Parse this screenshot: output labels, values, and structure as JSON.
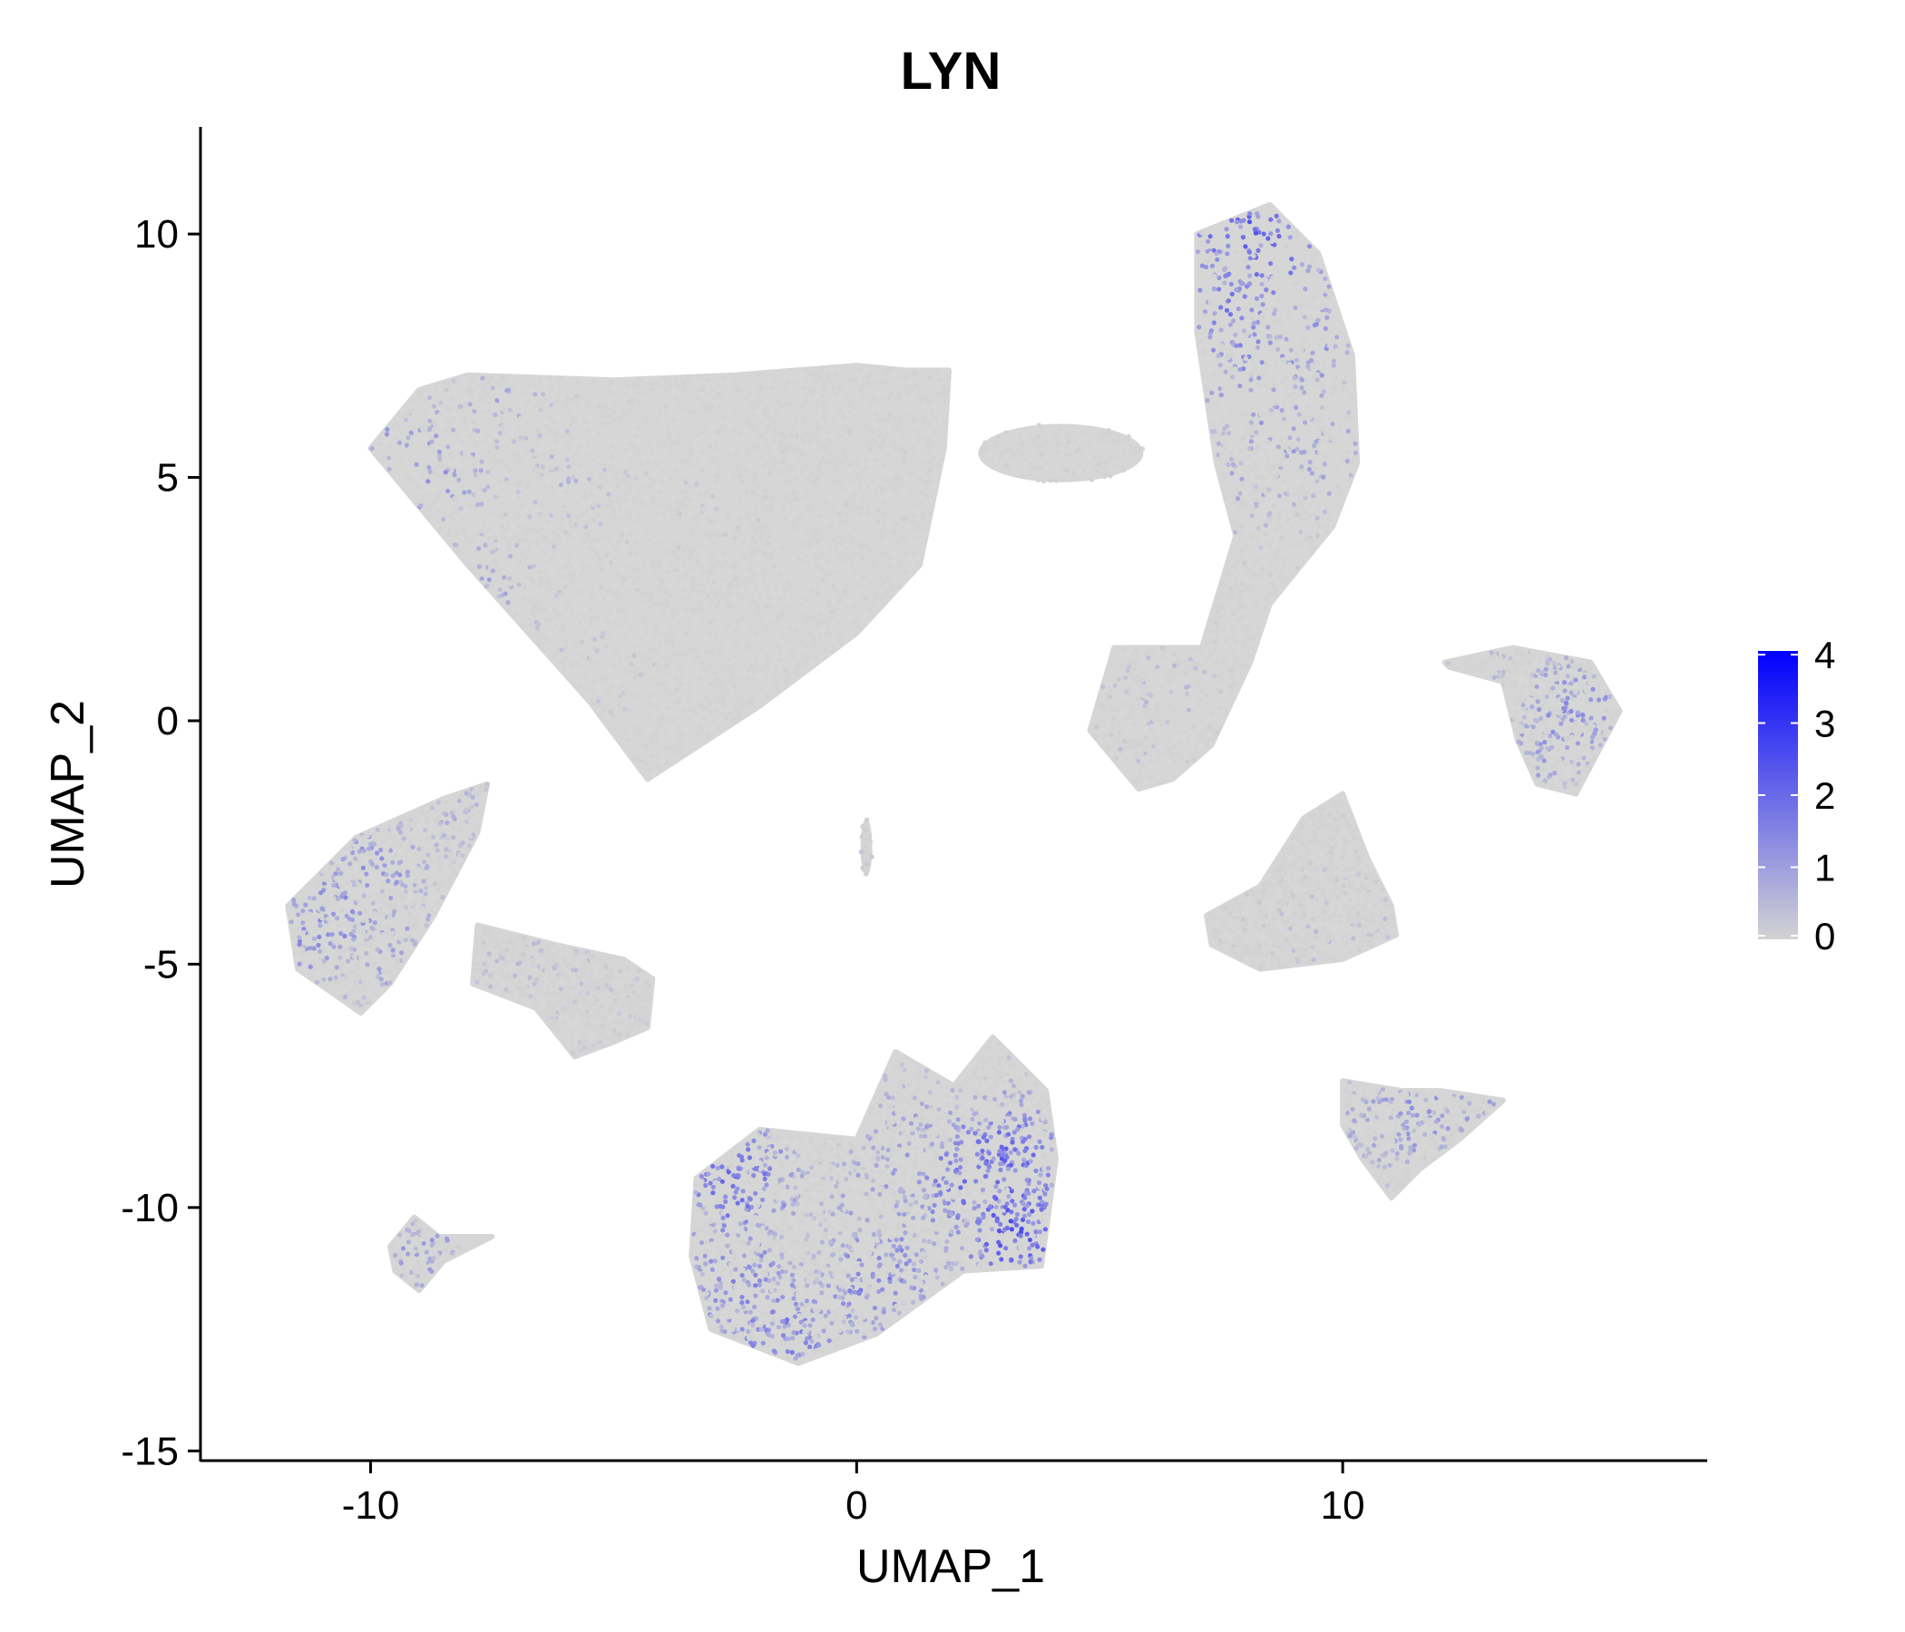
{
  "chart_data": {
    "type": "scatter",
    "title": "LYN",
    "xlabel": "UMAP_1",
    "ylabel": "UMAP_2",
    "xlim": [
      -13.5,
      17.5
    ],
    "ylim": [
      -15.2,
      12.2
    ],
    "x_ticks": [
      -10,
      0,
      10
    ],
    "y_ticks": [
      10,
      5,
      0,
      -5,
      -10,
      -15
    ],
    "x_tick_labels": [
      "-10",
      "0",
      "10"
    ],
    "y_tick_labels": [
      "10",
      "5",
      "0",
      "-5",
      "-10",
      "-15"
    ],
    "grid": false,
    "legend_placement": "right",
    "color_scale": {
      "low_color": "#d3d3d3",
      "high_color": "#0000ff",
      "min": 0,
      "max": 4,
      "tick_values": [
        0,
        1,
        2,
        3,
        4
      ],
      "tick_labels": [
        "0",
        "1",
        "2",
        "3",
        "4"
      ]
    },
    "clusters": [
      {
        "shape": "polygon",
        "points": [
          [
            -10,
            5.6
          ],
          [
            -9,
            6.8
          ],
          [
            -8,
            7.1
          ],
          [
            -5,
            7.0
          ],
          [
            -2.5,
            7.1
          ],
          [
            0,
            7.3
          ],
          [
            1,
            7.2
          ],
          [
            1.9,
            7.2
          ],
          [
            1.8,
            5.6
          ],
          [
            1.3,
            3.2
          ],
          [
            0,
            1.8
          ],
          [
            -2,
            0.3
          ],
          [
            -4.3,
            -1.2
          ],
          [
            -5.5,
            0.4
          ],
          [
            -8,
            3.2
          ]
        ],
        "expression": [
          [
            -10.5,
            5.6,
            1.1
          ],
          [
            -8.8,
            5.2,
            0.9
          ],
          [
            -9.8,
            4.2,
            0.9
          ],
          [
            -7.8,
            2.7,
            0.7
          ],
          [
            -7.5,
            6.6,
            0.6
          ],
          [
            -6,
            4.8,
            0.4
          ],
          [
            -5.5,
            1.0,
            0.3
          ],
          [
            -3,
            4.5,
            0.2
          ],
          [
            0,
            3.8,
            0.1
          ],
          [
            1.2,
            6.5,
            0.1
          ]
        ],
        "n": 2300
      },
      {
        "shape": "polygon",
        "points": [
          [
            7,
            10
          ],
          [
            8.5,
            10.6
          ],
          [
            9.5,
            9.6
          ],
          [
            10.2,
            7.5
          ],
          [
            10.3,
            5.3
          ],
          [
            9.8,
            4.0
          ],
          [
            8.5,
            2.4
          ],
          [
            8.1,
            1.2
          ],
          [
            7.3,
            -0.5
          ],
          [
            6.5,
            -1.2
          ],
          [
            5.8,
            -1.4
          ],
          [
            4.8,
            -0.2
          ],
          [
            5.3,
            1.5
          ],
          [
            7.1,
            1.5
          ],
          [
            7.8,
            3.8
          ],
          [
            7.4,
            5.3
          ],
          [
            7,
            8
          ]
        ],
        "expression": [
          [
            8,
            10.2,
            1.6
          ],
          [
            8.5,
            9.6,
            1.4
          ],
          [
            7.6,
            8.6,
            1.2
          ],
          [
            8.0,
            7.5,
            1.0
          ],
          [
            9.4,
            7.7,
            0.9
          ],
          [
            8.6,
            6.0,
            0.8
          ],
          [
            9.6,
            5.4,
            0.7
          ],
          [
            7.8,
            4.8,
            0.6
          ],
          [
            6.3,
            0.6,
            0.4
          ],
          [
            5.6,
            -0.8,
            0.3
          ]
        ],
        "n": 1100
      },
      {
        "shape": "ellipse",
        "cx": 4.2,
        "cy": 5.5,
        "rx": 1.7,
        "ry": 0.6,
        "expression": [
          [
            4.2,
            5.5,
            0.1
          ]
        ],
        "n": 120
      },
      {
        "shape": "polygon",
        "points": [
          [
            12.1,
            1.2
          ],
          [
            13.5,
            1.5
          ],
          [
            15.1,
            1.2
          ],
          [
            15.7,
            0.2
          ],
          [
            14.8,
            -1.5
          ],
          [
            14.0,
            -1.3
          ],
          [
            13.6,
            -0.4
          ],
          [
            13.3,
            0.8
          ],
          [
            12.2,
            1.1
          ]
        ],
        "expression": [
          [
            14.8,
            0.2,
            1.0
          ],
          [
            14.2,
            -0.5,
            0.8
          ],
          [
            15.3,
            0.8,
            0.7
          ],
          [
            13.4,
            0.9,
            0.5
          ]
        ],
        "n": 420
      },
      {
        "shape": "polygon",
        "points": [
          [
            -11.7,
            -3.8
          ],
          [
            -10.3,
            -2.4
          ],
          [
            -8.5,
            -1.6
          ],
          [
            -7.6,
            -1.3
          ],
          [
            -7.8,
            -2.3
          ],
          [
            -8.7,
            -4
          ],
          [
            -9.6,
            -5.4
          ],
          [
            -10.2,
            -6.0
          ],
          [
            -11.5,
            -5.1
          ]
        ],
        "expression": [
          [
            -10.8,
            -4.0,
            1.0
          ],
          [
            -10.0,
            -3.0,
            0.9
          ],
          [
            -9.5,
            -4.8,
            0.8
          ],
          [
            -8.2,
            -1.8,
            0.5
          ],
          [
            -11.3,
            -4.6,
            0.9
          ]
        ],
        "n": 700
      },
      {
        "shape": "polygon",
        "points": [
          [
            -7.8,
            -4.2
          ],
          [
            -6.2,
            -4.6
          ],
          [
            -4.8,
            -4.9
          ],
          [
            -4.2,
            -5.3
          ],
          [
            -4.3,
            -6.3
          ],
          [
            -5.0,
            -6.6
          ],
          [
            -5.8,
            -6.9
          ],
          [
            -6.6,
            -5.9
          ],
          [
            -7.9,
            -5.4
          ]
        ],
        "expression": [
          [
            -6.5,
            -4.7,
            0.4
          ],
          [
            -5.2,
            -5.8,
            0.2
          ],
          [
            -7.4,
            -5.1,
            0.3
          ]
        ],
        "n": 520
      },
      {
        "shape": "ellipse",
        "cx": 0.2,
        "cy": -2.6,
        "rx": 0.12,
        "ry": 0.6,
        "expression": [
          [
            0.2,
            -2.6,
            0.2
          ]
        ],
        "n": 40
      },
      {
        "shape": "polygon",
        "points": [
          [
            7.2,
            -4.0
          ],
          [
            8.3,
            -3.4
          ],
          [
            9.2,
            -2.0
          ],
          [
            10.0,
            -1.5
          ],
          [
            10.5,
            -2.8
          ],
          [
            11.0,
            -3.8
          ],
          [
            11.1,
            -4.4
          ],
          [
            10.0,
            -4.9
          ],
          [
            8.3,
            -5.1
          ],
          [
            7.3,
            -4.6
          ]
        ],
        "expression": [
          [
            9.5,
            -4.2,
            0.3
          ],
          [
            8.3,
            -4.5,
            0.2
          ],
          [
            10.5,
            -3.9,
            0.3
          ]
        ],
        "n": 620
      },
      {
        "shape": "polygon",
        "points": [
          [
            -3.3,
            -9.4
          ],
          [
            -2.0,
            -8.4
          ],
          [
            0,
            -8.6
          ],
          [
            0.8,
            -6.8
          ],
          [
            2.0,
            -7.5
          ],
          [
            2.8,
            -6.5
          ],
          [
            3.9,
            -7.6
          ],
          [
            4.1,
            -9.0
          ],
          [
            3.8,
            -11.2
          ],
          [
            2.2,
            -11.3
          ],
          [
            0.4,
            -12.6
          ],
          [
            -1.2,
            -13.2
          ],
          [
            -3.0,
            -12.5
          ],
          [
            -3.4,
            -11.0
          ]
        ],
        "expression": [
          [
            3.4,
            -10.4,
            1.8
          ],
          [
            3.0,
            -9.0,
            1.5
          ],
          [
            -2.5,
            -9.5,
            1.4
          ],
          [
            -1.5,
            -12.6,
            1.2
          ],
          [
            0.5,
            -11.5,
            1.2
          ],
          [
            -2.4,
            -11.6,
            1.1
          ],
          [
            1.2,
            -8.5,
            0.8
          ],
          [
            0.5,
            -9.8,
            0.8
          ],
          [
            2.2,
            -9.5,
            1.3
          ]
        ],
        "n": 1900
      },
      {
        "shape": "polygon",
        "points": [
          [
            10.0,
            -7.4
          ],
          [
            11.2,
            -7.6
          ],
          [
            12.0,
            -7.6
          ],
          [
            13.3,
            -7.8
          ],
          [
            12.4,
            -8.6
          ],
          [
            11.6,
            -9.2
          ],
          [
            11.0,
            -9.8
          ],
          [
            10.4,
            -9.0
          ],
          [
            10.0,
            -8.3
          ]
        ],
        "expression": [
          [
            11.5,
            -8.1,
            0.9
          ],
          [
            10.7,
            -8.5,
            0.7
          ],
          [
            12.6,
            -7.9,
            0.8
          ]
        ],
        "n": 300
      },
      {
        "shape": "polygon",
        "points": [
          [
            -9.6,
            -10.8
          ],
          [
            -9.1,
            -10.2
          ],
          [
            -8.6,
            -10.6
          ],
          [
            -7.5,
            -10.6
          ],
          [
            -8.5,
            -11.1
          ],
          [
            -9.0,
            -11.7
          ],
          [
            -9.5,
            -11.3
          ]
        ],
        "expression": [
          [
            -9.0,
            -10.9,
            0.8
          ],
          [
            -8.0,
            -10.7,
            0.6
          ]
        ],
        "n": 90
      }
    ]
  }
}
